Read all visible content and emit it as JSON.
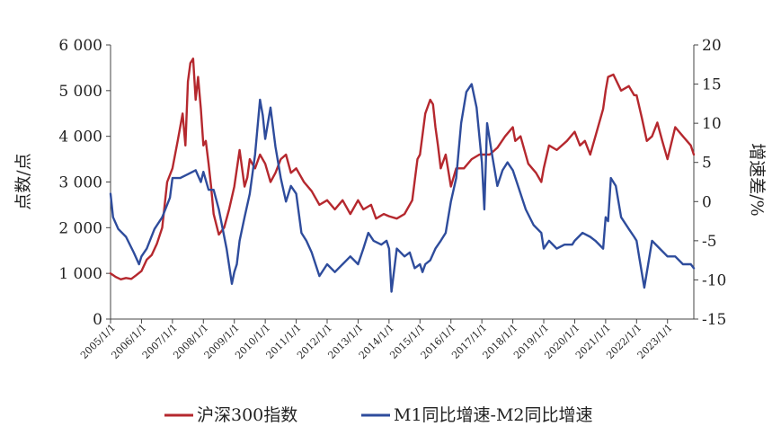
{
  "chart_data": {
    "type": "line",
    "title": "",
    "ylabel_left": "点数/点",
    "ylabel_right": "增速差/%",
    "ylim_left": [
      0,
      6000
    ],
    "ylim_right": [
      -15,
      20
    ],
    "yticks_left": [
      "0",
      "1 000",
      "2 000",
      "3 000",
      "4 000",
      "5 000",
      "6 000"
    ],
    "yticks_right": [
      "-15",
      "-10",
      "-5",
      "0",
      "5",
      "10",
      "15",
      "20"
    ],
    "xlim": [
      2005.0,
      2023.85
    ],
    "xticks": [
      "2005/1/1",
      "2006/1/1",
      "2007/1/1",
      "2008/1/1",
      "2009/1/1",
      "2010/1/1",
      "2011/1/1",
      "2012/1/1",
      "2013/1/1",
      "2014/1/1",
      "2015/1/1",
      "2016/1/1",
      "2017/1/1",
      "2018/1/1",
      "2019/1/1",
      "2020/1/1",
      "2021/1/1",
      "2022/1/1",
      "2023/1/1"
    ],
    "legend_position": "bottom",
    "series": [
      {
        "name": "沪深300指数",
        "axis": "left",
        "color": "#b5282e",
        "x": [
          2005.0,
          2005.17,
          2005.33,
          2005.5,
          2005.67,
          2005.83,
          2006.0,
          2006.17,
          2006.33,
          2006.5,
          2006.67,
          2006.83,
          2007.0,
          2007.17,
          2007.33,
          2007.42,
          2007.5,
          2007.58,
          2007.67,
          2007.75,
          2007.83,
          2007.92,
          2008.0,
          2008.08,
          2008.17,
          2008.25,
          2008.33,
          2008.5,
          2008.67,
          2008.83,
          2009.0,
          2009.17,
          2009.33,
          2009.42,
          2009.5,
          2009.58,
          2009.67,
          2009.83,
          2010.0,
          2010.17,
          2010.33,
          2010.5,
          2010.67,
          2010.83,
          2011.0,
          2011.25,
          2011.5,
          2011.75,
          2012.0,
          2012.25,
          2012.5,
          2012.75,
          2013.0,
          2013.17,
          2013.42,
          2013.58,
          2013.83,
          2014.0,
          2014.25,
          2014.5,
          2014.75,
          2014.92,
          2015.0,
          2015.17,
          2015.33,
          2015.42,
          2015.5,
          2015.58,
          2015.67,
          2015.83,
          2016.0,
          2016.17,
          2016.42,
          2016.67,
          2016.92,
          2017.25,
          2017.5,
          2017.75,
          2018.0,
          2018.08,
          2018.25,
          2018.5,
          2018.75,
          2018.92,
          2019.0,
          2019.17,
          2019.42,
          2019.75,
          2020.0,
          2020.17,
          2020.33,
          2020.5,
          2020.67,
          2020.92,
          2021.0,
          2021.08,
          2021.25,
          2021.5,
          2021.75,
          2021.92,
          2022.0,
          2022.17,
          2022.33,
          2022.5,
          2022.67,
          2022.83,
          2023.0,
          2023.25,
          2023.5,
          2023.75,
          2023.85
        ],
        "values": [
          1000,
          920,
          870,
          900,
          880,
          960,
          1050,
          1300,
          1400,
          1650,
          2000,
          3000,
          3300,
          3900,
          4500,
          3800,
          5200,
          5600,
          5700,
          4800,
          5300,
          4600,
          3800,
          3900,
          3400,
          2900,
          2300,
          1850,
          2000,
          2400,
          2900,
          3700,
          2900,
          3100,
          3500,
          3400,
          3300,
          3600,
          3400,
          3000,
          3200,
          3500,
          3600,
          3200,
          3300,
          3000,
          2800,
          2500,
          2600,
          2400,
          2600,
          2300,
          2600,
          2400,
          2500,
          2200,
          2300,
          2250,
          2200,
          2300,
          2600,
          3500,
          3600,
          4500,
          4800,
          4700,
          4200,
          3800,
          3300,
          3600,
          2900,
          3300,
          3300,
          3500,
          3600,
          3600,
          3750,
          4000,
          4200,
          3900,
          4000,
          3400,
          3200,
          3000,
          3300,
          3800,
          3700,
          3900,
          4100,
          3800,
          3900,
          3600,
          4000,
          4600,
          5000,
          5300,
          5350,
          5000,
          5100,
          4900,
          4900,
          4400,
          3900,
          4000,
          4300,
          3900,
          3500,
          4200,
          4000,
          3800,
          3600
        ]
      },
      {
        "name": "M1同比增速-M2同比增速",
        "axis": "right",
        "color": "#2e4c9c",
        "x": [
          2005.0,
          2005.08,
          2005.25,
          2005.5,
          2005.75,
          2005.92,
          2006.0,
          2006.17,
          2006.42,
          2006.67,
          2006.92,
          2007.0,
          2007.25,
          2007.5,
          2007.75,
          2007.92,
          2008.0,
          2008.17,
          2008.33,
          2008.5,
          2008.75,
          2008.92,
          2009.0,
          2009.08,
          2009.17,
          2009.33,
          2009.5,
          2009.67,
          2009.83,
          2009.92,
          2010.0,
          2010.17,
          2010.33,
          2010.5,
          2010.67,
          2010.83,
          2011.0,
          2011.17,
          2011.33,
          2011.5,
          2011.75,
          2012.0,
          2012.25,
          2012.5,
          2012.75,
          2013.0,
          2013.17,
          2013.33,
          2013.5,
          2013.75,
          2013.92,
          2014.0,
          2014.08,
          2014.25,
          2014.5,
          2014.67,
          2014.83,
          2015.0,
          2015.08,
          2015.17,
          2015.33,
          2015.5,
          2015.67,
          2015.83,
          2016.0,
          2016.17,
          2016.33,
          2016.5,
          2016.67,
          2016.83,
          2017.0,
          2017.08,
          2017.17,
          2017.33,
          2017.5,
          2017.67,
          2017.83,
          2018.0,
          2018.17,
          2018.42,
          2018.67,
          2018.92,
          2019.0,
          2019.17,
          2019.42,
          2019.67,
          2019.92,
          2020.0,
          2020.25,
          2020.5,
          2020.67,
          2020.92,
          2021.0,
          2021.08,
          2021.17,
          2021.33,
          2021.5,
          2021.75,
          2021.92,
          2022.0,
          2022.08,
          2022.25,
          2022.5,
          2022.75,
          2023.0,
          2023.25,
          2023.5,
          2023.75,
          2023.85
        ],
        "values": [
          1,
          -2,
          -3.5,
          -4.5,
          -6.5,
          -8,
          -7,
          -6,
          -3.5,
          -2,
          0.5,
          3,
          3,
          3.5,
          4,
          2.5,
          3.8,
          1.5,
          1.5,
          -1,
          -6,
          -10.5,
          -9,
          -8,
          -5,
          -2,
          1,
          6,
          13,
          11,
          8,
          12,
          7,
          3,
          0,
          2,
          1,
          -4,
          -5,
          -6.5,
          -9.5,
          -8,
          -9,
          -8,
          -7,
          -8,
          -6,
          -4,
          -5,
          -5.5,
          -5,
          -6,
          -11.5,
          -6,
          -7,
          -6.5,
          -8.5,
          -8,
          -9,
          -8,
          -7.5,
          -6,
          -5,
          -4,
          0,
          3,
          10,
          14,
          15,
          12,
          5,
          -1,
          10,
          6,
          2,
          4,
          5,
          4,
          2,
          -1,
          -3,
          -4,
          -6,
          -5,
          -6,
          -5.5,
          -5.5,
          -5,
          -4,
          -4.5,
          -5,
          -6,
          -2,
          -2.5,
          3,
          2,
          -2,
          -3.5,
          -4.5,
          -5,
          -7,
          -11,
          -5,
          -6,
          -7,
          -7,
          -8,
          -8,
          -8.5
        ]
      }
    ]
  }
}
